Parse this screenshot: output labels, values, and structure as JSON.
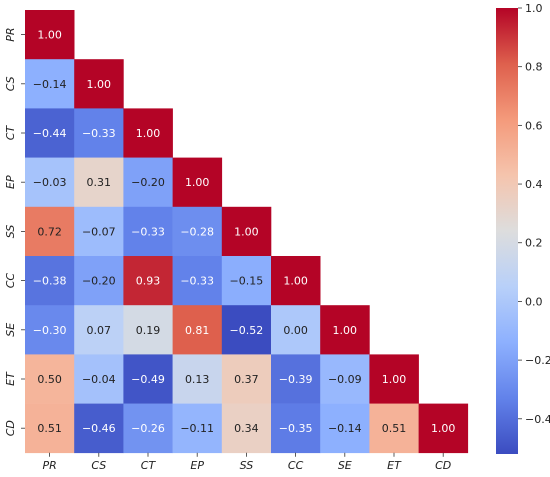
{
  "chart_data": {
    "type": "heatmap",
    "variables": [
      "PR",
      "CS",
      "CT",
      "EP",
      "SS",
      "CC",
      "SE",
      "ET",
      "CD"
    ],
    "rows": [
      [
        1.0
      ],
      [
        -0.14,
        1.0
      ],
      [
        -0.44,
        -0.33,
        1.0
      ],
      [
        -0.03,
        0.31,
        -0.2,
        1.0
      ],
      [
        0.72,
        -0.07,
        -0.33,
        -0.28,
        1.0
      ],
      [
        -0.38,
        -0.2,
        0.93,
        -0.33,
        -0.15,
        1.0
      ],
      [
        -0.3,
        0.07,
        0.19,
        0.81,
        -0.52,
        0.0,
        1.0
      ],
      [
        0.5,
        -0.04,
        -0.49,
        0.13,
        0.37,
        -0.39,
        -0.09,
        1.0
      ],
      [
        0.51,
        -0.46,
        -0.26,
        -0.11,
        0.34,
        -0.35,
        -0.14,
        0.51,
        1.0
      ]
    ],
    "lower_triangle_only": true,
    "colormap": "coolwarm",
    "vmin": -0.52,
    "vmax": 1.0,
    "colorbar_ticks": [
      "1.0",
      "0.8",
      "0.6",
      "0.4",
      "0.2",
      "0.0",
      "−0.2",
      "−0.4"
    ],
    "colorbar_tick_values": [
      1.0,
      0.8,
      0.6,
      0.4,
      0.2,
      0.0,
      -0.2,
      -0.4
    ],
    "colorbar_position": "right"
  }
}
